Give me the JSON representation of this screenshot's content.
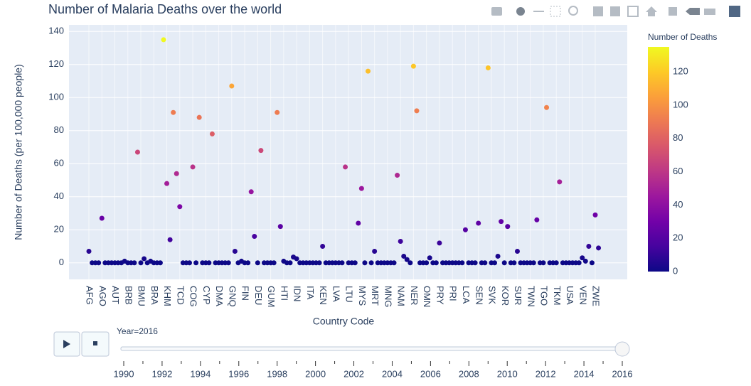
{
  "chart_data": {
    "type": "scatter",
    "title": "Number of Malaria Deaths over the world",
    "x_label": "Country Code",
    "y_label": "Number of Deaths (per 100,000 people)",
    "categories": [
      "AFG",
      null,
      null,
      null,
      "AGO",
      null,
      null,
      null,
      "AUT",
      null,
      null,
      null,
      "BRB",
      null,
      null,
      null,
      "BMU",
      null,
      null,
      null,
      "BRA",
      null,
      null,
      null,
      "KHM",
      null,
      null,
      null,
      "TCD",
      null,
      null,
      null,
      "COG",
      null,
      null,
      null,
      "CYP",
      null,
      null,
      null,
      "DMA",
      null,
      null,
      null,
      "GNQ",
      null,
      null,
      null,
      "FIN",
      null,
      null,
      null,
      "DEU",
      null,
      null,
      null,
      "GUM",
      null,
      null,
      null,
      "HTI",
      null,
      null,
      null,
      "IDN",
      null,
      null,
      null,
      "ITA",
      null,
      null,
      null,
      "KEN",
      null,
      null,
      null,
      "LVA",
      null,
      null,
      null,
      "LTU",
      null,
      null,
      null,
      "MYS",
      null,
      null,
      null,
      "MRT",
      null,
      null,
      null,
      "MNG",
      null,
      null,
      null,
      "NAM",
      null,
      null,
      null,
      "NER",
      null,
      null,
      null,
      "OMN",
      null,
      null,
      null,
      "PRY",
      null,
      null,
      null,
      "PRI",
      null,
      null,
      null,
      "LCA",
      null,
      null,
      null,
      "SEN",
      null,
      null,
      null,
      "SVK",
      null,
      null,
      null,
      "KOR",
      null,
      null,
      null,
      "SUR",
      null,
      null,
      null,
      "TWN",
      null,
      null,
      null,
      "TGO",
      null,
      null,
      null,
      "TKM",
      null,
      null,
      null,
      "USA",
      null,
      null,
      null,
      "VEN",
      null,
      null,
      null,
      "ZWE",
      null
    ],
    "values": [
      7,
      0,
      0,
      0,
      27,
      0,
      0,
      0,
      0,
      0,
      0,
      1,
      0,
      0,
      0,
      67,
      0,
      2.5,
      0,
      1,
      0,
      0,
      0,
      135,
      48,
      14,
      91,
      54,
      34,
      0,
      0,
      0,
      58,
      0,
      88,
      0,
      0,
      0,
      78,
      0,
      0,
      0,
      0,
      0,
      107,
      7,
      0,
      1,
      0,
      0,
      43,
      16,
      0,
      68,
      0,
      0,
      0,
      0,
      91,
      22,
      1,
      0,
      0,
      3.5,
      2.5,
      0,
      0,
      0,
      0,
      0,
      0,
      0,
      10,
      0,
      0,
      0,
      0,
      0,
      0,
      58,
      0,
      0,
      0,
      24,
      45,
      0,
      116,
      0,
      7,
      0,
      0,
      0,
      0,
      0,
      0,
      53,
      13,
      4,
      2,
      0,
      119,
      92,
      0,
      0,
      0,
      3,
      0,
      0,
      12,
      0,
      0,
      0,
      0,
      0,
      0,
      0,
      20,
      0,
      0,
      0,
      24,
      0,
      0,
      118,
      0,
      0,
      4,
      25,
      0,
      22,
      0,
      0,
      7,
      0,
      0,
      0,
      0,
      0,
      26,
      0,
      0,
      94,
      0,
      0,
      0,
      49,
      0,
      0,
      0,
      0,
      0,
      0,
      3,
      1,
      10,
      0,
      29,
      9
    ],
    "ylim": [
      -10,
      144
    ],
    "yticks": [
      0,
      20,
      40,
      60,
      80,
      100,
      120,
      140
    ],
    "grid": true,
    "colorscale": [
      "#0d0887",
      "#46039f",
      "#7201a8",
      "#9c179e",
      "#bd3786",
      "#d8576b",
      "#ed7953",
      "#fb9f3a",
      "#fdca26",
      "#f0f921"
    ],
    "color_range": [
      0,
      135
    ],
    "colorbar_title": "Number of Deaths",
    "colorbar_ticks": [
      0,
      20,
      40,
      60,
      80,
      100,
      120
    ],
    "slider": {
      "current_label": "Year=2016",
      "value": 2016,
      "ticks": [
        1990,
        1992,
        1994,
        1996,
        1998,
        2000,
        2002,
        2004,
        2006,
        2008,
        2010,
        2012,
        2014,
        2016
      ]
    }
  }
}
